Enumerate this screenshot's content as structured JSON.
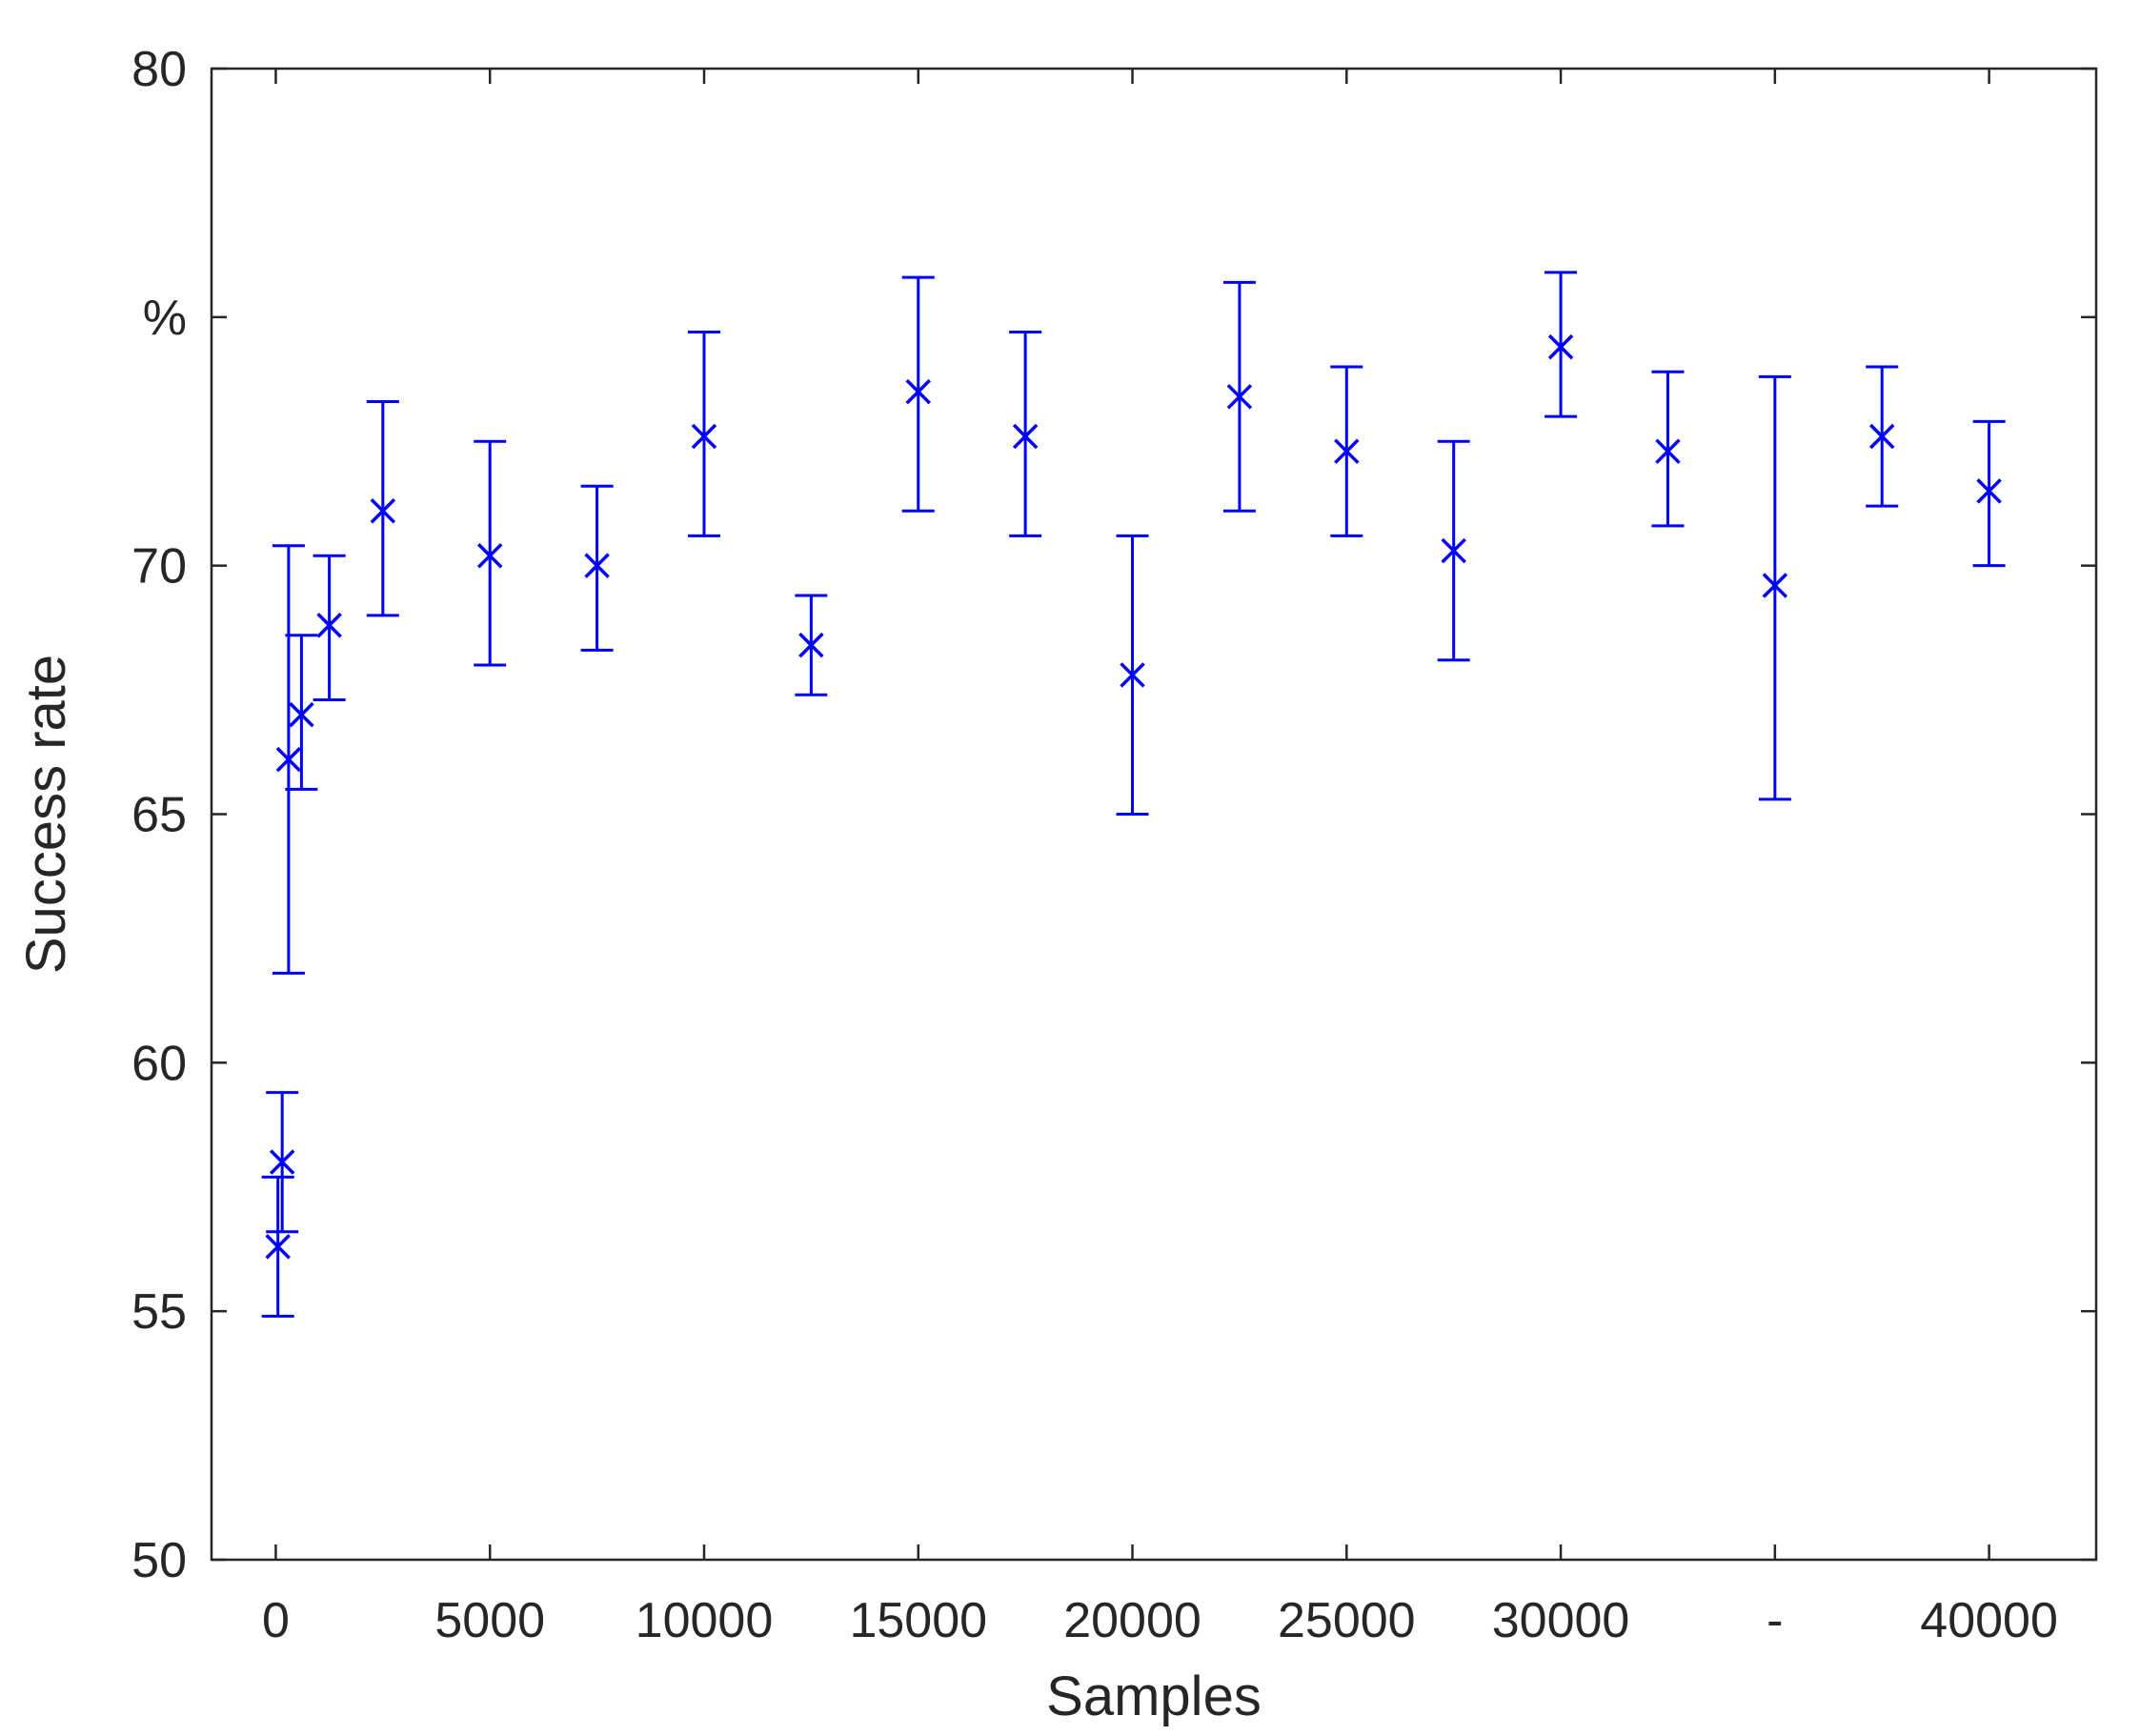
{
  "chart_data": {
    "type": "scatter",
    "title": "",
    "xlabel": "Samples",
    "ylabel": "Success rate",
    "xlim": [
      -1500,
      42500
    ],
    "ylim": [
      50,
      80
    ],
    "x_ticks": [
      {
        "value": 0,
        "label": "0"
      },
      {
        "value": 5000,
        "label": "5000"
      },
      {
        "value": 10000,
        "label": "10000"
      },
      {
        "value": 15000,
        "label": "15000"
      },
      {
        "value": 20000,
        "label": "20000"
      },
      {
        "value": 25000,
        "label": "25000"
      },
      {
        "value": 30000,
        "label": "30000"
      },
      {
        "value": 35000,
        "label": "-"
      },
      {
        "value": 40000,
        "label": "40000"
      }
    ],
    "y_ticks": [
      {
        "value": 50,
        "label": "50"
      },
      {
        "value": 55,
        "label": "55"
      },
      {
        "value": 60,
        "label": "60"
      },
      {
        "value": 65,
        "label": "65"
      },
      {
        "value": 70,
        "label": "70"
      },
      {
        "value": 75,
        "label": "%"
      },
      {
        "value": 80,
        "label": "80"
      }
    ],
    "grid": false,
    "marker": "x",
    "color": "#0000ff",
    "series": [
      {
        "x": [
          50,
          150,
          300,
          600,
          1250,
          2500,
          5000,
          7500,
          10000,
          12500,
          15000,
          17500,
          20000,
          22500,
          25000,
          27500,
          30000,
          32500,
          35000,
          37500,
          40000
        ],
        "y": [
          56.3,
          58.0,
          66.1,
          67.0,
          68.8,
          71.1,
          70.2,
          70.0,
          72.6,
          68.4,
          73.5,
          72.6,
          67.8,
          73.4,
          72.3,
          70.3,
          74.4,
          72.3,
          69.6,
          72.6,
          71.5
        ],
        "y_lower": [
          54.9,
          56.6,
          61.8,
          65.5,
          67.3,
          69.0,
          68.0,
          68.3,
          70.6,
          67.4,
          71.1,
          70.6,
          65.0,
          71.1,
          70.6,
          68.1,
          73.0,
          70.8,
          65.3,
          71.2,
          70.0
        ],
        "y_upper": [
          57.7,
          59.4,
          70.4,
          68.6,
          70.2,
          73.3,
          72.5,
          71.6,
          74.7,
          69.4,
          75.8,
          74.7,
          70.6,
          75.7,
          74.0,
          72.5,
          75.9,
          73.9,
          73.8,
          74.0,
          72.9
        ]
      }
    ]
  }
}
